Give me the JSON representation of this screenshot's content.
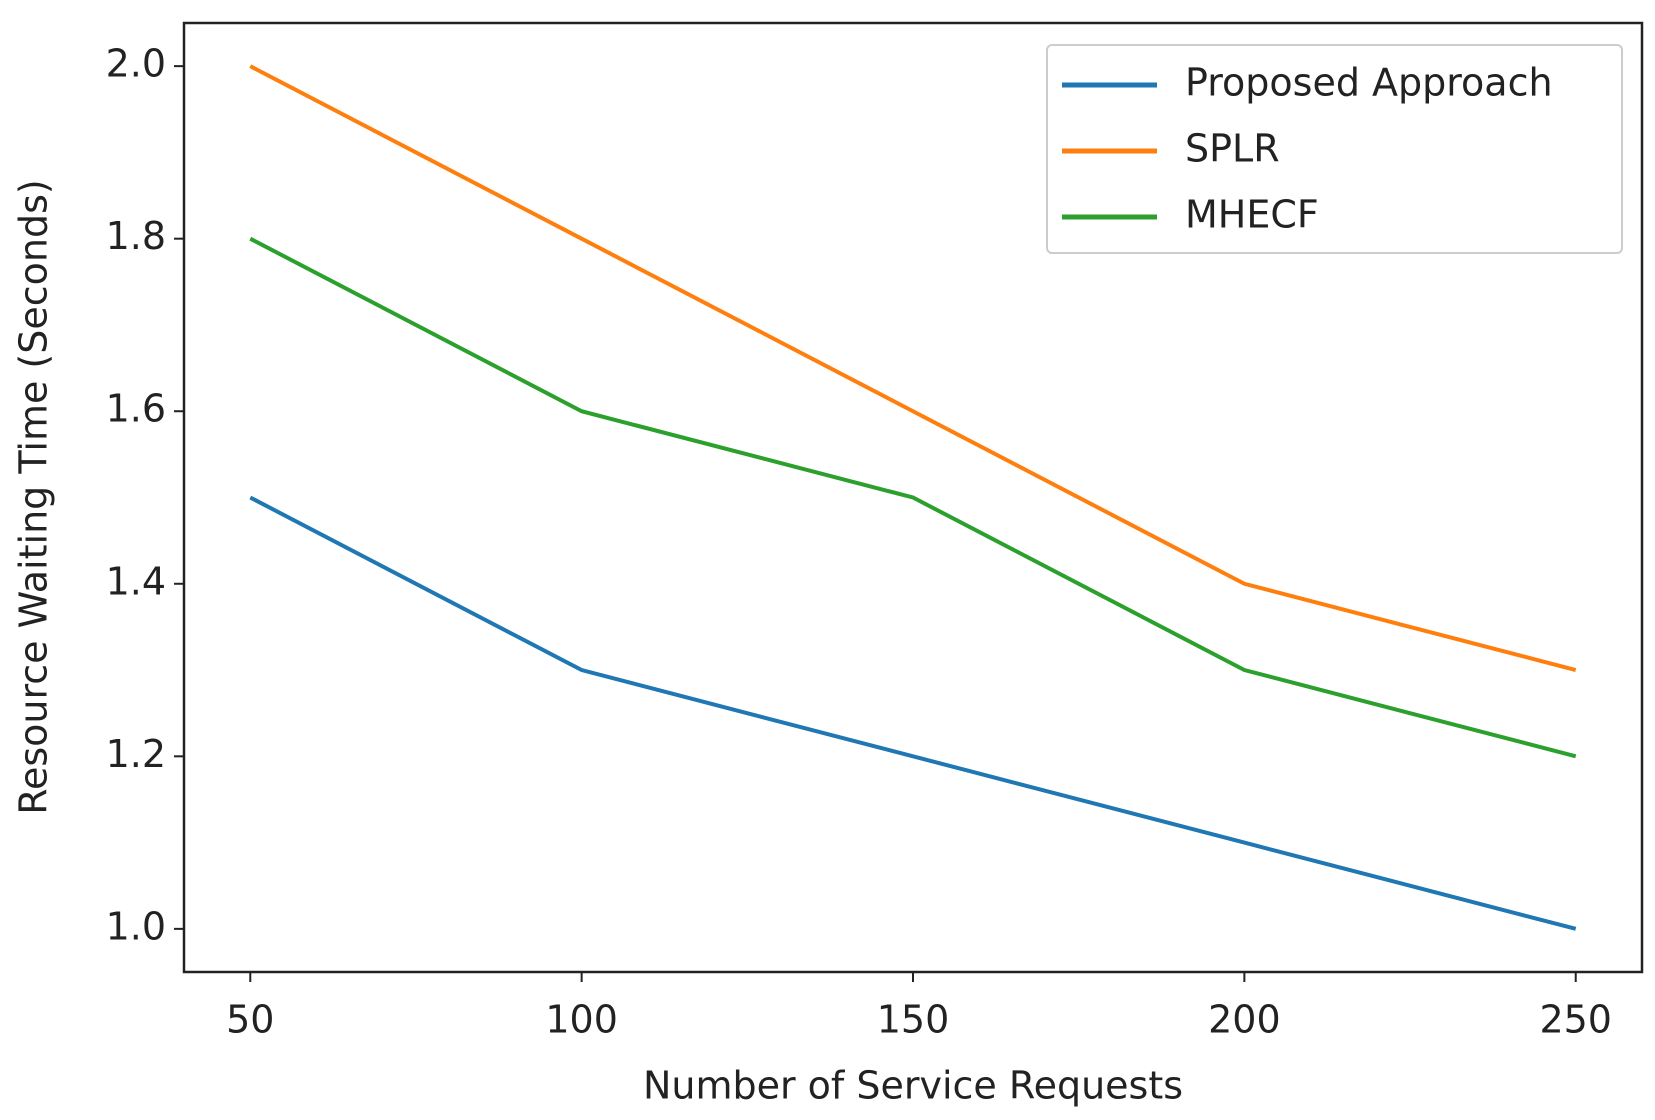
{
  "chart_data": {
    "type": "line",
    "x_label": "Number of Service Requests",
    "y_label": "Resource Waiting Time (Seconds)",
    "x": [
      50,
      100,
      150,
      200,
      250
    ],
    "series": [
      {
        "name": "Proposed Approach",
        "color": "#1f77b4",
        "values": [
          1.5,
          1.3,
          1.2,
          1.1,
          1.0
        ]
      },
      {
        "name": "SPLR",
        "color": "#ff7f0e",
        "values": [
          2.0,
          1.8,
          1.6,
          1.4,
          1.3
        ]
      },
      {
        "name": "MHECF",
        "color": "#2ca02c",
        "values": [
          1.8,
          1.6,
          1.5,
          1.3,
          1.2
        ]
      }
    ],
    "xlim": [
      40,
      260
    ],
    "xticks": [
      50,
      100,
      150,
      200,
      250
    ],
    "ylim": [
      0.95,
      2.05
    ],
    "yticks": [
      {
        "value": 1.0,
        "label": "1.0"
      },
      1.2,
      1.4,
      1.6,
      1.8,
      {
        "value": 2.0,
        "label": "2.0"
      }
    ],
    "legend": "upper-right",
    "grid": false
  }
}
